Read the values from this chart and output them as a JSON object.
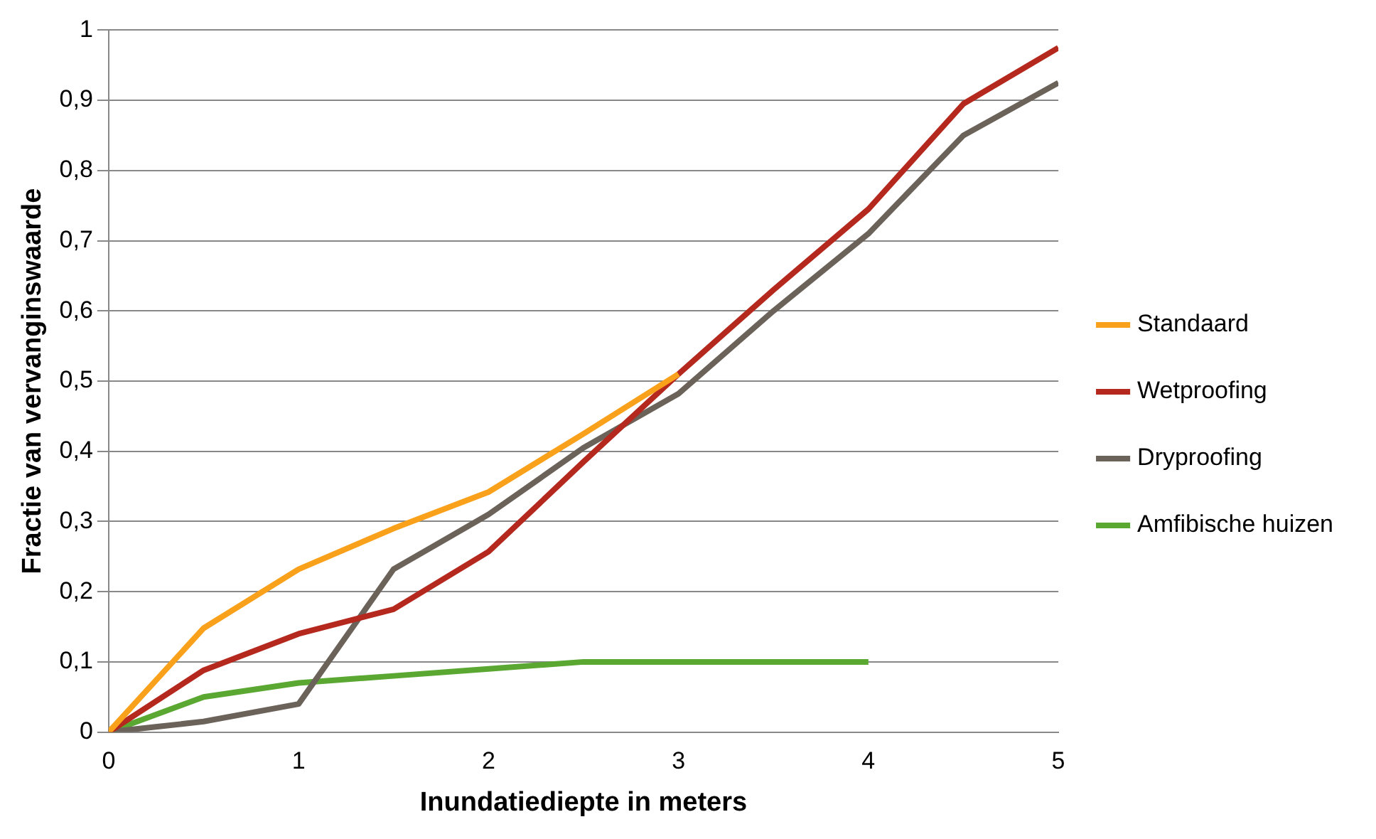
{
  "chart_data": {
    "type": "line",
    "xlabel": "Inundatiediepte in meters",
    "ylabel": "Fractie van vervanginswaarde",
    "x": [
      0,
      0.5,
      1,
      1.5,
      2,
      2.5,
      3,
      3.5,
      4,
      4.5,
      5
    ],
    "series": [
      {
        "name": "Standaard",
        "color": "#f9a11b",
        "values": [
          0,
          0.148,
          0.232,
          0.29,
          0.342,
          0.425,
          0.51,
          null,
          null,
          null,
          null
        ]
      },
      {
        "name": "Wetproofing",
        "color": "#b5281e",
        "values": [
          0,
          0.088,
          0.14,
          0.175,
          0.257,
          0.385,
          0.51,
          0.63,
          0.745,
          0.895,
          0.975
        ]
      },
      {
        "name": "Dryproofing",
        "color": "#6b6259",
        "values": [
          0,
          0.015,
          0.04,
          0.232,
          0.31,
          0.405,
          0.482,
          0.6,
          0.71,
          0.85,
          0.925
        ]
      },
      {
        "name": "Amfibische huizen",
        "color": "#5aa832",
        "values": [
          0,
          0.05,
          0.07,
          0.08,
          0.09,
          0.1,
          0.1,
          0.1,
          0.1,
          null,
          null
        ]
      }
    ],
    "xlim": [
      0,
      5
    ],
    "xticks": [
      0,
      1,
      2,
      3,
      4,
      5
    ],
    "ylim": [
      0,
      1
    ],
    "yticks": [
      0,
      {
        "value": 0.1,
        "label": "0,1"
      },
      {
        "value": 0.2,
        "label": "0,2"
      },
      {
        "value": 0.3,
        "label": "0,3"
      },
      {
        "value": 0.4,
        "label": "0,4"
      },
      {
        "value": 0.5,
        "label": "0,5"
      },
      {
        "value": 0.6,
        "label": "0,6"
      },
      {
        "value": 0.7,
        "label": "0,7"
      },
      {
        "value": 0.8,
        "label": "0,8"
      },
      {
        "value": 0.9,
        "label": "0,9"
      },
      1
    ],
    "grid": "y",
    "legend": "right",
    "marker": "none",
    "line_style": "solid"
  }
}
